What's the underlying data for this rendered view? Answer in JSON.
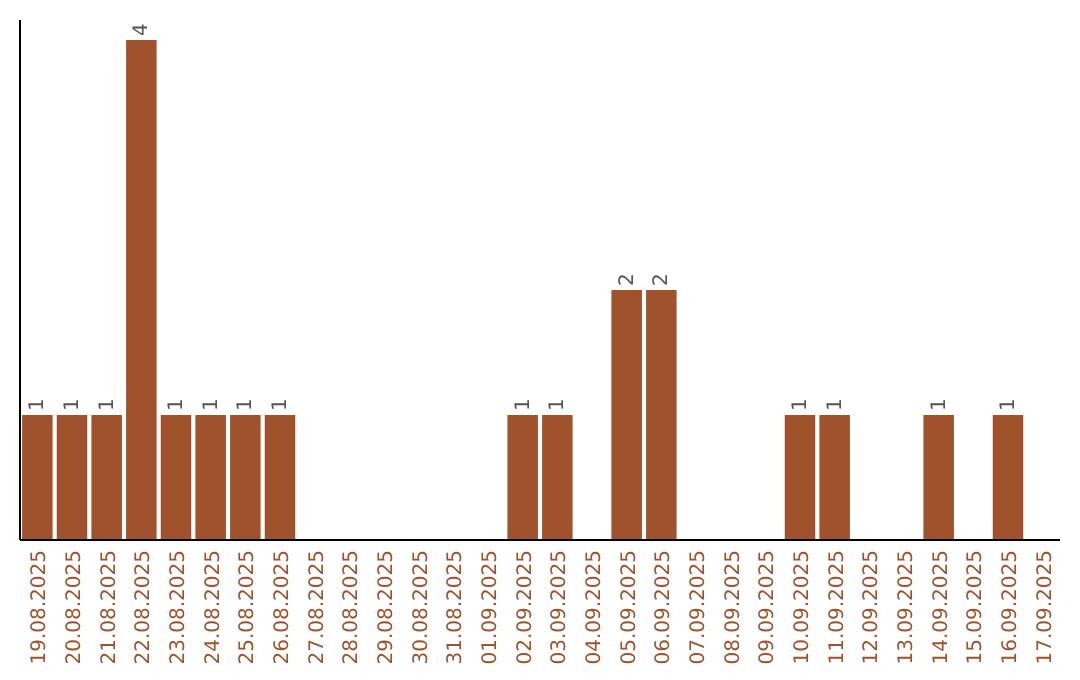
{
  "chart_data": {
    "type": "bar",
    "categories": [
      "19.08.2025",
      "20.08.2025",
      "21.08.2025",
      "22.08.2025",
      "23.08.2025",
      "24.08.2025",
      "25.08.2025",
      "26.08.2025",
      "27.08.2025",
      "28.08.2025",
      "29.08.2025",
      "30.08.2025",
      "31.08.2025",
      "01.09.2025",
      "02.09.2025",
      "03.09.2025",
      "04.09.2025",
      "05.09.2025",
      "06.09.2025",
      "07.09.2025",
      "08.09.2025",
      "09.09.2025",
      "10.09.2025",
      "11.09.2025",
      "12.09.2025",
      "13.09.2025",
      "14.09.2025",
      "15.09.2025",
      "16.09.2025",
      "17.09.2025"
    ],
    "values": [
      1,
      1,
      1,
      4,
      1,
      1,
      1,
      1,
      0,
      0,
      0,
      0,
      0,
      0,
      1,
      1,
      0,
      2,
      2,
      0,
      0,
      0,
      1,
      1,
      0,
      0,
      1,
      0,
      1,
      0
    ],
    "value_labels": [
      "1",
      "1",
      "1",
      "4",
      "1",
      "1",
      "1",
      "1",
      null,
      null,
      null,
      null,
      null,
      null,
      "1",
      "1",
      null,
      "2",
      "2",
      null,
      null,
      null,
      "1",
      "1",
      null,
      null,
      "1",
      null,
      "1",
      null
    ],
    "color": "#a0522d"
  }
}
